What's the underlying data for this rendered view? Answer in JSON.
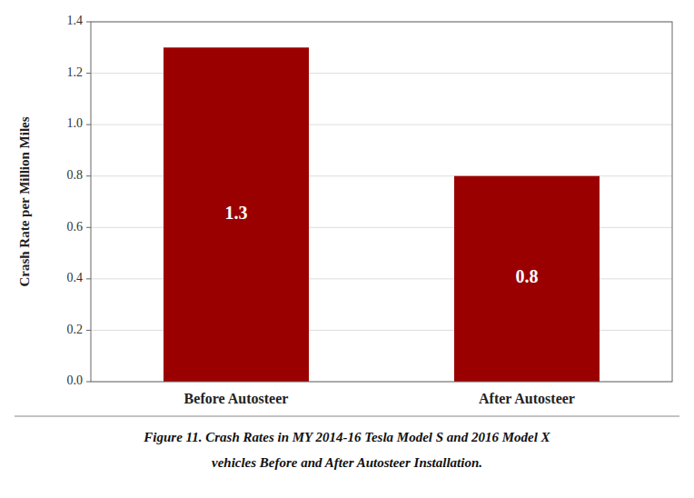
{
  "chart_data": {
    "type": "bar",
    "categories": [
      "Before Autosteer",
      "After Autosteer"
    ],
    "values": [
      1.3,
      0.8
    ],
    "color": "#9B0000",
    "data_labels": true,
    "ylabel": "Crash Rate per Million Miles",
    "ylim": [
      0,
      1.4
    ],
    "yticks": [
      {
        "value": 0.0,
        "label": "0.0"
      },
      0.2,
      0.4,
      0.6,
      0.8,
      {
        "value": 1.0,
        "label": "1.0"
      },
      1.2,
      1.4
    ],
    "grid": true,
    "annotations": [
      "Figure 11. Crash Rates in MY 2014-16 Tesla Model S and 2016 Model X",
      "vehicles Before and After Autosteer Installation."
    ]
  }
}
